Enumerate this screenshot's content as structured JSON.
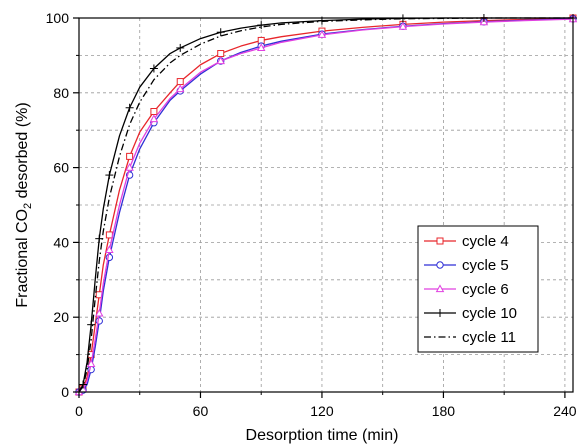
{
  "chart_data": {
    "type": "line",
    "title": "",
    "xlabel": "Desorption time (min)",
    "ylabel": "Fractional CO2 desorbed (%)",
    "ylabel_parts": [
      "Fractional CO",
      "2",
      " desorbed (%)"
    ],
    "xlim": [
      0,
      244
    ],
    "ylim": [
      0,
      100
    ],
    "x_ticks": [
      0,
      60,
      120,
      180,
      240
    ],
    "x_tick_labels": [
      "0",
      "60",
      "120",
      "180",
      "240"
    ],
    "y_ticks": [
      0,
      20,
      40,
      60,
      80,
      100
    ],
    "y_tick_labels": [
      "0",
      "20",
      "40",
      "60",
      "80",
      "100"
    ],
    "grid": true,
    "legend_position": "bottom-right",
    "series": [
      {
        "name": "cycle 4",
        "color": "#e8262b",
        "line_style": "solid",
        "marker": "square",
        "x": [
          0,
          2,
          4,
          6,
          8,
          10,
          12,
          15,
          20,
          25,
          30,
          37,
          45,
          50,
          60,
          70,
          80,
          90,
          100,
          120,
          140,
          160,
          180,
          200,
          220,
          244
        ],
        "y": [
          0,
          1,
          4,
          10,
          18,
          26,
          34,
          42,
          54,
          63,
          69.5,
          75,
          80,
          83,
          87.5,
          90.5,
          92.5,
          94,
          95,
          96.5,
          97.5,
          98.3,
          98.9,
          99.3,
          99.6,
          100
        ]
      },
      {
        "name": "cycle 5",
        "color": "#2f2fd6",
        "line_style": "solid",
        "marker": "circle",
        "x": [
          0,
          2,
          4,
          6,
          8,
          10,
          12,
          15,
          20,
          25,
          30,
          37,
          45,
          50,
          60,
          70,
          80,
          90,
          100,
          120,
          140,
          160,
          180,
          200,
          220,
          244
        ],
        "y": [
          0,
          0.5,
          2,
          6,
          12,
          19,
          27,
          36,
          48,
          58,
          65,
          72,
          78,
          80.5,
          85,
          88.5,
          90.8,
          92.5,
          93.8,
          95.7,
          96.9,
          97.8,
          98.5,
          99,
          99.4,
          99.8
        ]
      },
      {
        "name": "cycle 6",
        "color": "#e040e0",
        "line_style": "solid",
        "marker": "triangle",
        "x": [
          0,
          2,
          4,
          6,
          8,
          10,
          12,
          15,
          20,
          25,
          30,
          37,
          45,
          50,
          60,
          70,
          80,
          90,
          100,
          120,
          140,
          160,
          180,
          200,
          220,
          244
        ],
        "y": [
          0,
          0.7,
          3,
          7.5,
          14,
          21,
          29,
          38,
          50,
          60,
          66.5,
          73,
          78.5,
          81,
          85.5,
          88.5,
          90.5,
          92,
          93.5,
          95.5,
          96.8,
          97.7,
          98.4,
          98.9,
          99.3,
          99.7
        ]
      },
      {
        "name": "cycle 10",
        "color": "#000000",
        "line_style": "solid",
        "marker": "plus",
        "x": [
          0,
          2,
          4,
          6,
          8,
          10,
          12,
          15,
          20,
          25,
          30,
          37,
          45,
          50,
          60,
          70,
          80,
          90,
          100,
          120,
          140,
          160,
          180,
          200,
          220,
          244
        ],
        "y": [
          0,
          2,
          8,
          18,
          30,
          41,
          49,
          58,
          68.5,
          76,
          81.5,
          86.5,
          90.5,
          92,
          94.5,
          96.2,
          97.3,
          98.1,
          98.7,
          99.3,
          99.7,
          99.9,
          100,
          100,
          100,
          100
        ]
      },
      {
        "name": "cycle 11",
        "color": "#000000",
        "line_style": "dashdot",
        "marker": "none",
        "x": [
          0,
          2,
          4,
          6,
          8,
          10,
          12,
          15,
          20,
          25,
          30,
          37,
          45,
          50,
          60,
          70,
          80,
          90,
          100,
          120,
          140,
          160,
          180,
          200,
          220,
          244
        ],
        "y": [
          0,
          1.5,
          6,
          14,
          25,
          35,
          43,
          52,
          63,
          71.5,
          77.5,
          83.5,
          88,
          90,
          93,
          95.2,
          96.6,
          97.6,
          98.3,
          99.1,
          99.5,
          99.8,
          99.9,
          100,
          100,
          100
        ]
      }
    ]
  }
}
